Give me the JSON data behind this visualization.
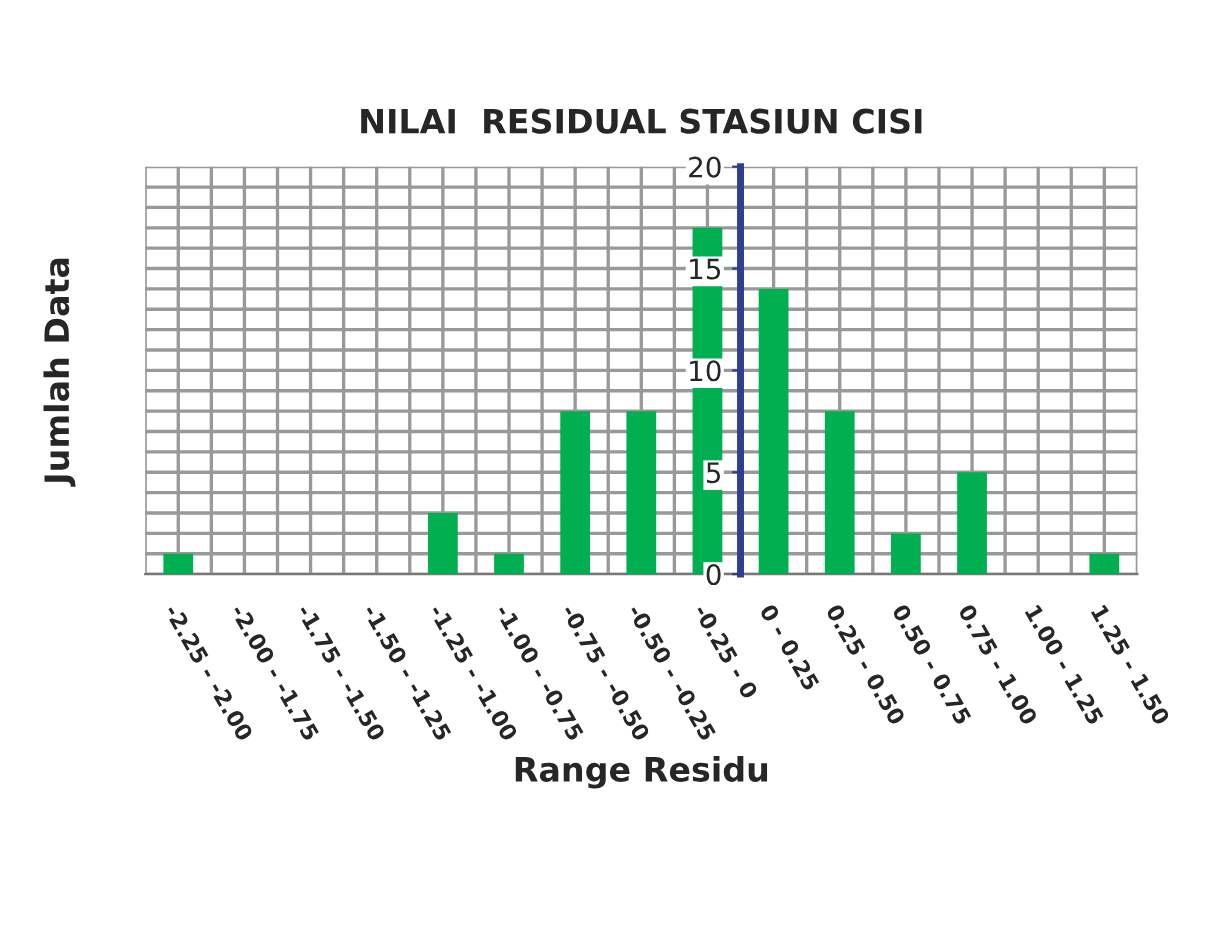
{
  "chart_data": {
    "type": "bar",
    "title": "NILAI  RESIDUAL STASIUN CISI",
    "xlabel": "Range Residu",
    "ylabel": "Jumlah Data",
    "categories": [
      "-2.25 - -2.00",
      "-2.00 - -1.75",
      "-1.75 - -1.50",
      "-1.50 - -1.25",
      "-1.25 - -1.00",
      "-1.00 - -0.75",
      "-0.75 - -0.50",
      "-0.50 - -0.25",
      "-0.25 - 0",
      "0 - 0.25",
      "0.25 - 0.50",
      "0.50 - 0.75",
      "0.75 - 1.00",
      "1.00 - 1.25",
      "1.25 - 1.50"
    ],
    "values": [
      1,
      0,
      0,
      0,
      3,
      1,
      8,
      8,
      17,
      14,
      8,
      2,
      5,
      0,
      1
    ],
    "color": "#00b050",
    "ylim": [
      0,
      20
    ],
    "yticks": [
      0,
      5,
      10,
      15,
      20
    ],
    "grid": true
  }
}
